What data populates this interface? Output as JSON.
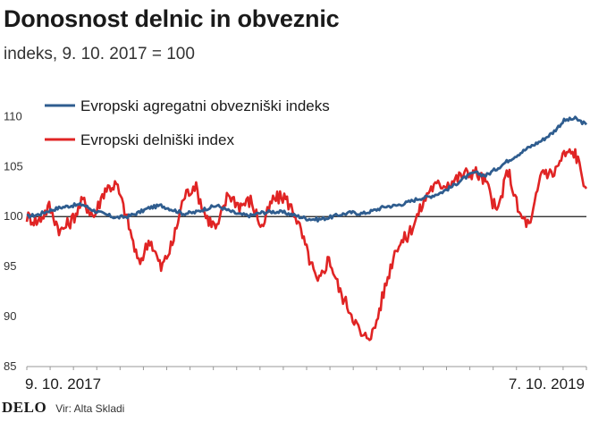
{
  "header": {
    "title": "Donosnost delnic in obveznic",
    "subtitle": "indeks, 9. 10. 2017 = 100"
  },
  "footer": {
    "logo": "DELO",
    "source": "Vir: Alta Skladi"
  },
  "chart_data": {
    "type": "line",
    "title": "Donosnost delnic in obveznic",
    "subtitle": "indeks, 9. 10. 2017 = 100",
    "xlabel": "",
    "ylabel": "",
    "x_tick_labels": [
      "9. 10. 2017",
      "7. 10. 2019"
    ],
    "x": [
      0,
      0.02,
      0.04,
      0.06,
      0.08,
      0.1,
      0.12,
      0.14,
      0.16,
      0.18,
      0.2,
      0.22,
      0.24,
      0.26,
      0.28,
      0.3,
      0.32,
      0.34,
      0.36,
      0.38,
      0.4,
      0.42,
      0.44,
      0.46,
      0.48,
      0.5,
      0.52,
      0.54,
      0.56,
      0.58,
      0.6,
      0.62,
      0.64,
      0.66,
      0.68,
      0.7,
      0.72,
      0.74,
      0.76,
      0.78,
      0.8,
      0.82,
      0.84,
      0.86,
      0.88,
      0.9,
      0.92,
      0.94,
      0.96,
      0.98,
      1.0
    ],
    "ylim": [
      85,
      112
    ],
    "yticks": [
      85,
      90,
      95,
      100,
      105,
      110
    ],
    "reference_line": 100,
    "legend_position": "top-left",
    "grid": false,
    "series": [
      {
        "name": "Evropski agregatni obvezniški indeks",
        "color": "#2f5d8f",
        "values": [
          100.0,
          100.2,
          100.6,
          100.9,
          101.1,
          101.2,
          100.6,
          100.2,
          99.9,
          100.0,
          100.4,
          100.9,
          101.1,
          100.7,
          100.3,
          100.4,
          100.8,
          101.1,
          100.6,
          100.2,
          100.1,
          100.4,
          100.5,
          100.4,
          100.1,
          99.8,
          99.7,
          99.9,
          100.2,
          100.4,
          100.3,
          100.6,
          101.0,
          101.1,
          101.4,
          101.8,
          102.0,
          102.4,
          103.0,
          103.8,
          104.4,
          104.1,
          104.8,
          105.6,
          106.3,
          107.0,
          107.6,
          108.4,
          109.6,
          109.8,
          109.2
        ]
      },
      {
        "name": "Evropski delniški index",
        "color": "#e02424",
        "values": [
          100.0,
          99.5,
          101.0,
          98.5,
          99.6,
          101.6,
          100.0,
          102.8,
          103.2,
          99.6,
          95.2,
          97.8,
          94.8,
          97.2,
          101.9,
          103.2,
          100.0,
          98.8,
          102.3,
          101.1,
          101.6,
          98.9,
          101.7,
          102.0,
          100.2,
          96.6,
          93.2,
          95.9,
          92.4,
          90.4,
          87.8,
          88.5,
          92.9,
          97.0,
          98.0,
          100.3,
          102.8,
          103.2,
          103.5,
          104.2,
          104.5,
          103.5,
          100.3,
          104.7,
          100.2,
          99.0,
          104.7,
          104.2,
          106.2,
          106.4,
          102.8
        ]
      }
    ]
  }
}
